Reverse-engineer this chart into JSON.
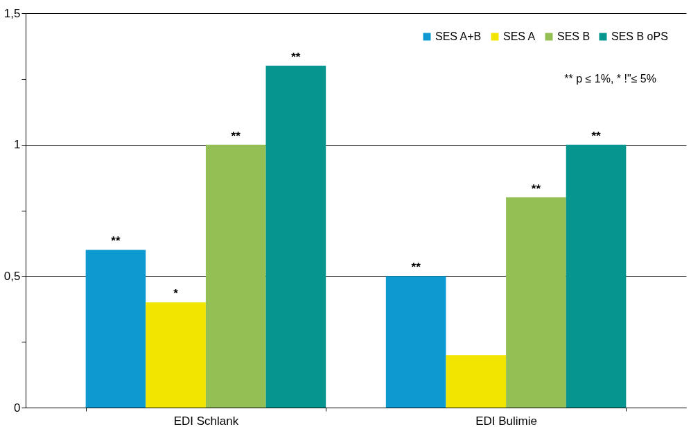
{
  "chart_data": {
    "type": "bar",
    "categories": [
      "EDI Schlank",
      "EDI Bulimie"
    ],
    "series": [
      {
        "name": "SES A+B",
        "color": "#0e9ad0",
        "values": [
          0.6,
          0.5
        ],
        "value_labels": [
          "**",
          "**"
        ]
      },
      {
        "name": "SES A",
        "color": "#f2e500",
        "values": [
          0.4,
          0.2
        ],
        "value_labels": [
          "*",
          null
        ]
      },
      {
        "name": "SES B",
        "color": "#93bf55",
        "values": [
          1.0,
          0.8
        ],
        "value_labels": [
          "**",
          "**"
        ]
      },
      {
        "name": "SES B oPS",
        "color": "#06968f",
        "values": [
          1.3,
          1.0
        ],
        "value_labels": [
          "**",
          "**"
        ]
      }
    ],
    "ylim": [
      0,
      1.5
    ],
    "yticks": [
      0,
      {
        "value": 0.25,
        "label": null
      },
      {
        "value": 0.5,
        "label": "0,5"
      },
      {
        "value": 0.75,
        "label": null
      },
      1,
      {
        "value": 1.25,
        "label": null
      },
      {
        "value": 1.5,
        "label": "1,5"
      }
    ],
    "grid": "y",
    "legend": "top right",
    "annotations": [
      "** p ≤ 1%, * !\"≤ 5%"
    ]
  }
}
